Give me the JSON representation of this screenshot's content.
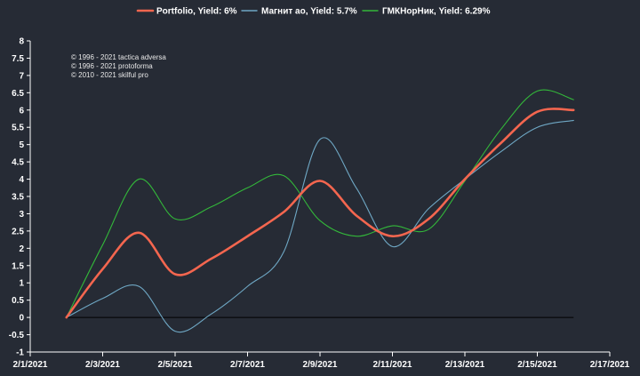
{
  "chart_data": {
    "type": "line",
    "xlabel": "",
    "ylabel": "",
    "ylim": [
      -1,
      8
    ],
    "xlim": [
      "2/1/2021",
      "2/17/2021"
    ],
    "y_ticks": [
      "-1",
      "-0.5",
      "0",
      "0.5",
      "1",
      "1.5",
      "2",
      "2.5",
      "3",
      "3.5",
      "4",
      "4.5",
      "5",
      "5.5",
      "6",
      "6.5",
      "7",
      "7.5",
      "8"
    ],
    "x_ticks": [
      "2/1/2021",
      "2/3/2021",
      "2/5/2021",
      "2/7/2021",
      "2/9/2021",
      "2/11/2021",
      "2/13/2021",
      "2/15/2021",
      "2/17/2021"
    ],
    "grid": false,
    "legend_position": "top-center",
    "zero_line": true,
    "x": [
      "2/2/2021",
      "2/3/2021",
      "2/4/2021",
      "2/5/2021",
      "2/6/2021",
      "2/7/2021",
      "2/8/2021",
      "2/9/2021",
      "2/10/2021",
      "2/11/2021",
      "2/12/2021",
      "2/13/2021",
      "2/14/2021",
      "2/15/2021",
      "2/16/2021"
    ],
    "series": [
      {
        "name": "Portfolio, Yield: 6%",
        "color": "#f4664f",
        "values": [
          0,
          1.4,
          2.45,
          1.25,
          1.7,
          2.35,
          3.05,
          3.95,
          2.95,
          2.35,
          2.85,
          4.0,
          5.05,
          5.95,
          6.0
        ]
      },
      {
        "name": "Магнит ао, Yield: 5.7%",
        "color": "#6fa8c5",
        "values": [
          0,
          0.55,
          0.9,
          -0.4,
          0.1,
          0.9,
          1.9,
          5.15,
          3.75,
          2.05,
          3.15,
          4.0,
          4.8,
          5.5,
          5.7
        ]
      },
      {
        "name": "ГМКНорНик, Yield: 6.29%",
        "color": "#33b83a",
        "values": [
          0,
          2.1,
          4.0,
          2.85,
          3.2,
          3.75,
          4.1,
          2.8,
          2.35,
          2.65,
          2.55,
          3.95,
          5.45,
          6.55,
          6.3
        ]
      }
    ]
  },
  "credits": [
    "© 1996 - 2021 tactica adversa",
    "© 1996 - 2021 protoforma",
    "© 2010 - 2021 skilful pro"
  ],
  "colors": {
    "background": "#262b35",
    "axis": "#ffffff",
    "zero_line": "#000000"
  }
}
